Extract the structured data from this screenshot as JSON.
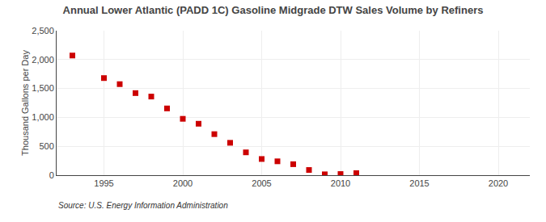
{
  "chart_data": {
    "type": "scatter",
    "title": "Annual Lower Atlantic (PADD 1C) Gasoline Midgrade DTW Sales Volume by Refiners",
    "ylabel": "Thousand Gallons per Day",
    "annotations": [
      "Source: U.S. Energy Information Administration"
    ],
    "x": [
      1993,
      1995,
      1996,
      1997,
      1998,
      1999,
      2000,
      2001,
      2002,
      2003,
      2004,
      2005,
      2006,
      2007,
      2008,
      2009,
      2010,
      2011
    ],
    "values": [
      2070,
      1680,
      1575,
      1420,
      1360,
      1155,
      975,
      890,
      710,
      560,
      395,
      280,
      240,
      190,
      90,
      15,
      20,
      35
    ],
    "color": "#cc0000",
    "marker": "square",
    "xlim": [
      1992,
      2022
    ],
    "xticks": [
      1995,
      2000,
      2005,
      2010,
      2015,
      2020
    ],
    "ylim": [
      0,
      2500
    ],
    "yticks": [
      0,
      500,
      {
        "value": 1000,
        "label": "1,000"
      },
      {
        "value": 1500,
        "label": "1,500"
      },
      {
        "value": 2000,
        "label": "2,000"
      },
      {
        "value": 2500,
        "label": "2,500"
      }
    ],
    "grid": true
  }
}
